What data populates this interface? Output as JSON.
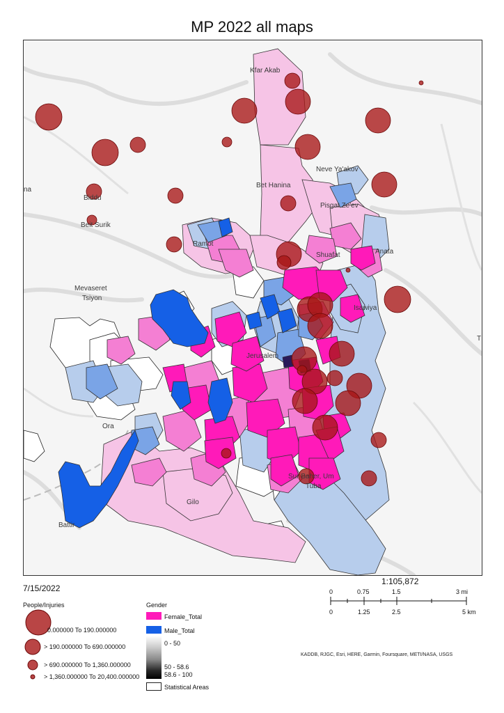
{
  "title": "MP 2022 all maps",
  "date": "7/15/2022",
  "scale": {
    "ratio": "1:105,872",
    "miles_labels": [
      "0",
      "0.75",
      "1.5",
      "3 mi"
    ],
    "km_labels": [
      "0",
      "1.25",
      "2.5",
      "5 km"
    ]
  },
  "attribution": "KADDB, RJGC, Esri, HERE, Garmin, Foursquare, METI/NASA, USGS",
  "place_labels": {
    "kfar_akab": "Kfar Akab",
    "neve_yaakov": "Neve Ya'akov",
    "bet_hanina": "Bet Hanina",
    "pisgat_zeev": "Pisgat Ze'ev",
    "biddu": "Biddu",
    "beit_surik": "Beit Surik",
    "ramot": "Ramot",
    "shuafat": "Shuafat",
    "anata": "Anata",
    "mevaseret": "Mevaseret",
    "tsiyon": "Tsiyon",
    "isawiya": "Isawiya",
    "jerusalem": "Jerusalem",
    "ora": "Ora",
    "sur_baher": "Sur Baher, Um",
    "tuba": "Tuba",
    "gilo": "Gilo",
    "battir": "Battir",
    "edge_left": "na",
    "edge_right": "T"
  },
  "legend": {
    "people_injuries": {
      "title": "People/Injuries",
      "classes": [
        "0.000000 To 190.000000",
        "> 190.000000 To 690.000000",
        "> 690.000000 To 1,360.000000",
        "> 1,360.000000 To 20,400.000000"
      ]
    },
    "gender": {
      "title": "Gender",
      "female": "Female_Total",
      "male": "Male_Total",
      "ramp_labels": [
        "0 - 50",
        "50 - 58.6",
        "58.6 - 100"
      ],
      "statistical_areas": "Statistical Areas"
    }
  },
  "colors": {
    "female_total": "#ff1ab9",
    "male_total": "#1560e6",
    "circle_fill": "#a81616",
    "basemap": "#f5f5f5",
    "roads": "#d6d6d6"
  }
}
